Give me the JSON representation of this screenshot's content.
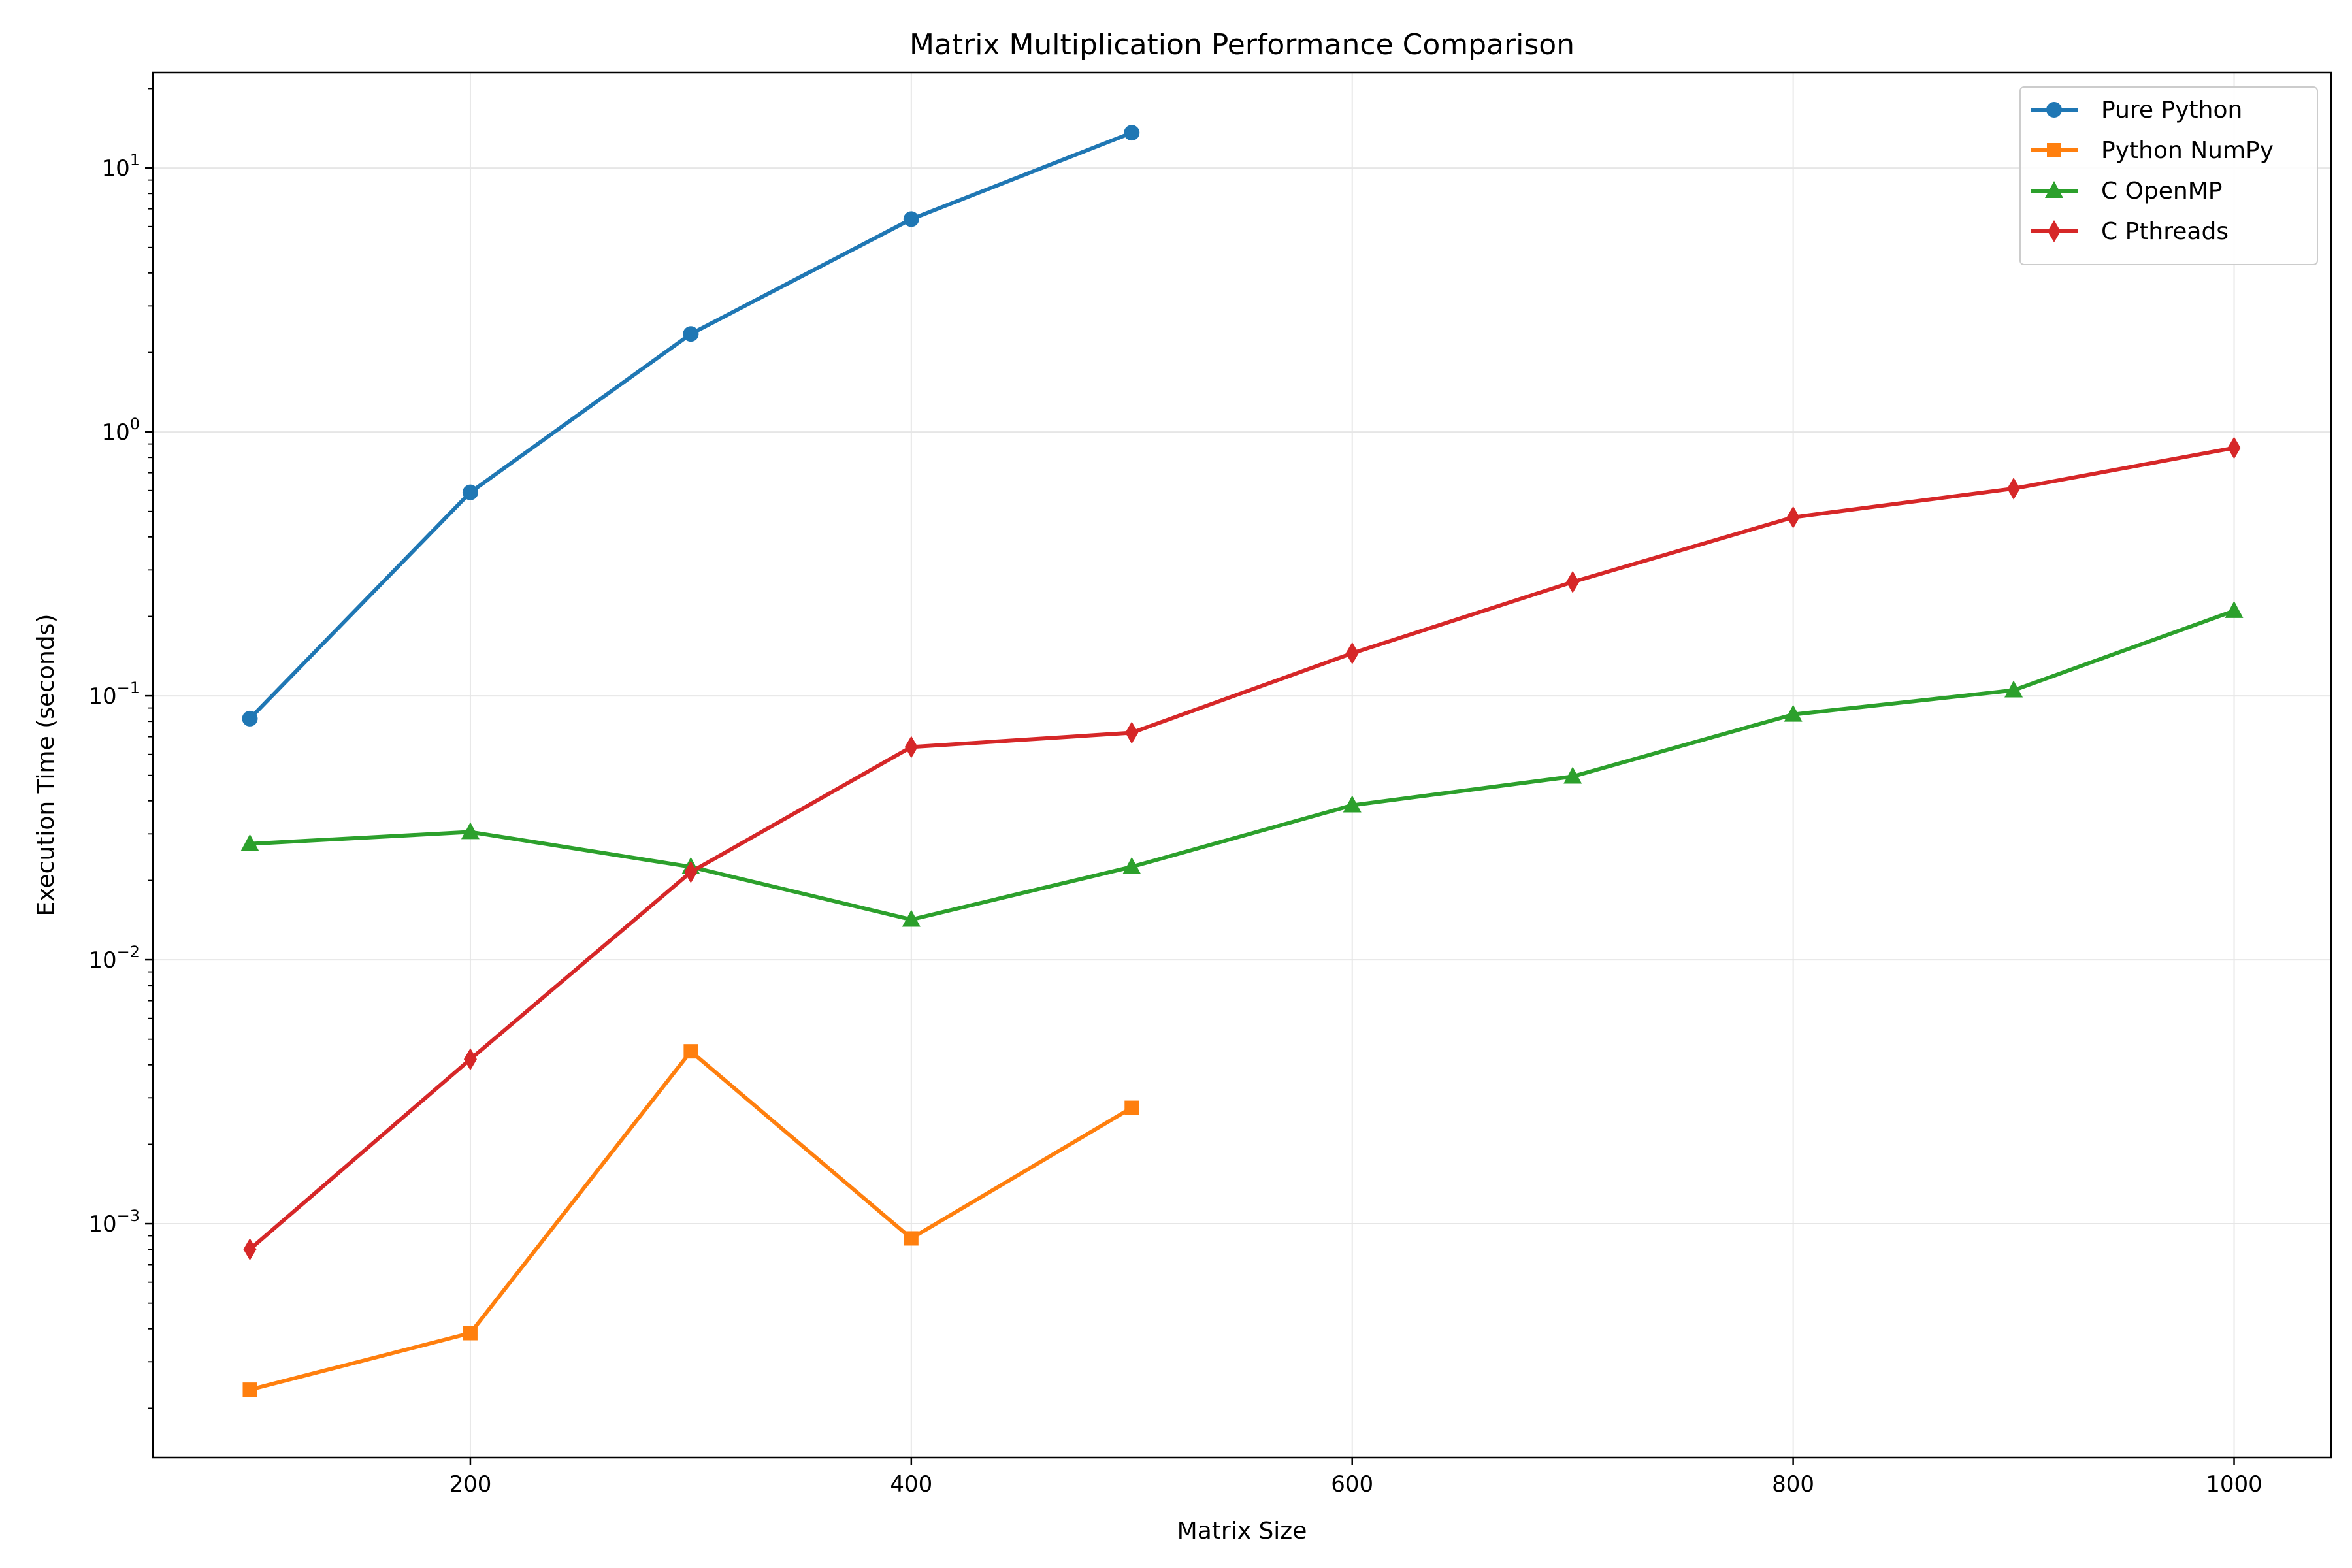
{
  "chart_data": {
    "type": "line",
    "title": "Matrix Multiplication Performance Comparison",
    "xlabel": "Matrix Size",
    "ylabel": "Execution Time (seconds)",
    "x_scale": "linear",
    "y_scale": "log",
    "xlim": [
      56,
      1044
    ],
    "ylim": [
      0.00013,
      23.0
    ],
    "x_ticks": [
      200,
      400,
      600,
      800,
      1000
    ],
    "y_ticks": [
      {
        "value": 0.001,
        "base": "10",
        "exp": "−3"
      },
      {
        "value": 0.01,
        "base": "10",
        "exp": "−2"
      },
      {
        "value": 0.1,
        "base": "10",
        "exp": "−1"
      },
      {
        "value": 1,
        "base": "10",
        "exp": "0"
      },
      {
        "value": 10,
        "base": "10",
        "exp": "1"
      }
    ],
    "grid": true,
    "legend_position": "top-right",
    "series": [
      {
        "name": "Pure Python",
        "color": "#1f77b4",
        "marker": "circle",
        "x": [
          100,
          200,
          300,
          400,
          500
        ],
        "y": [
          0.082,
          0.59,
          2.35,
          6.4,
          13.6
        ]
      },
      {
        "name": "Python NumPy",
        "color": "#ff7f0e",
        "marker": "square",
        "x": [
          100,
          200,
          300,
          400,
          500
        ],
        "y": [
          0.000235,
          0.000385,
          0.0045,
          0.00088,
          0.00275
        ]
      },
      {
        "name": "C OpenMP",
        "color": "#2ca02c",
        "marker": "triangle",
        "x": [
          100,
          200,
          300,
          400,
          500,
          600,
          700,
          800,
          900,
          1000
        ],
        "y": [
          0.0275,
          0.0305,
          0.0225,
          0.0142,
          0.0225,
          0.0385,
          0.0495,
          0.085,
          0.105,
          0.21
        ]
      },
      {
        "name": "C Pthreads",
        "color": "#d62728",
        "marker": "diamond",
        "x": [
          100,
          200,
          300,
          400,
          500,
          600,
          700,
          800,
          900,
          1000
        ],
        "y": [
          0.0008,
          0.0042,
          0.0215,
          0.064,
          0.0725,
          0.145,
          0.27,
          0.475,
          0.61,
          0.87
        ]
      }
    ]
  }
}
